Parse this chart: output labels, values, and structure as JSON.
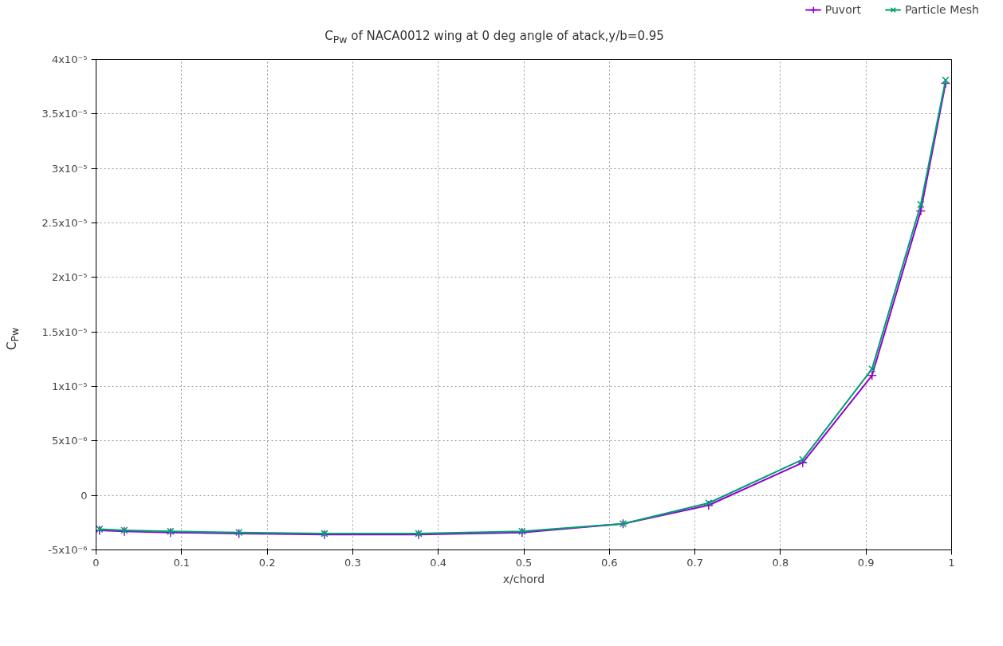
{
  "chart_data": {
    "type": "line",
    "title": "C$_{Pw}$ of NACA0012 wing at 0 deg angle of atack,y/b=0.95",
    "xlabel": "x/chord",
    "ylabel": "C$_{Pw}$",
    "x": [
      0.004,
      0.033,
      0.087,
      0.167,
      0.267,
      0.377,
      0.498,
      0.616,
      0.716,
      0.826,
      0.907,
      0.964,
      0.993
    ],
    "series": [
      {
        "name": "Puvort",
        "color": "#9400d3",
        "marker": "cross",
        "values": [
          -3.2e-06,
          -3.3e-06,
          -3.4e-06,
          -3.5e-06,
          -3.6e-06,
          -3.6e-06,
          -3.4e-06,
          -2.6e-06,
          -9e-07,
          3e-06,
          1.1e-05,
          2.61e-05,
          3.78e-05
        ]
      },
      {
        "name": "Particle Mesh",
        "color": "#009e73",
        "marker": "x",
        "values": [
          -3.1e-06,
          -3.2e-06,
          -3.3e-06,
          -3.4e-06,
          -3.5e-06,
          -3.5e-06,
          -3.3e-06,
          -2.6e-06,
          -7e-07,
          3.3e-06,
          1.16e-05,
          2.67e-05,
          3.81e-05
        ]
      }
    ],
    "xlim": [
      0,
      1
    ],
    "xticks": [
      0,
      0.1,
      0.2,
      0.3,
      0.4,
      0.5,
      0.6,
      0.7,
      0.8,
      0.9,
      1
    ],
    "ylim": [
      -5e-06,
      4e-05
    ],
    "yticks": [
      {
        "value": -5e-06,
        "label": "-5x10⁻⁶"
      },
      {
        "value": 0,
        "label": "0"
      },
      {
        "value": 5e-06,
        "label": "5x10⁻⁶"
      },
      {
        "value": 1e-05,
        "label": "1x10⁻⁵"
      },
      {
        "value": 1.5e-05,
        "label": "1.5x10⁻⁵"
      },
      {
        "value": 2e-05,
        "label": "2x10⁻⁵"
      },
      {
        "value": 2.5e-05,
        "label": "2.5x10⁻⁵"
      },
      {
        "value": 3e-05,
        "label": "3x10⁻⁵"
      },
      {
        "value": 3.5e-05,
        "label": "3.5x10⁻⁵"
      },
      {
        "value": 4e-05,
        "label": "4x10⁻⁵"
      }
    ],
    "grid": true,
    "legend": "top right",
    "line_style": "solid"
  }
}
